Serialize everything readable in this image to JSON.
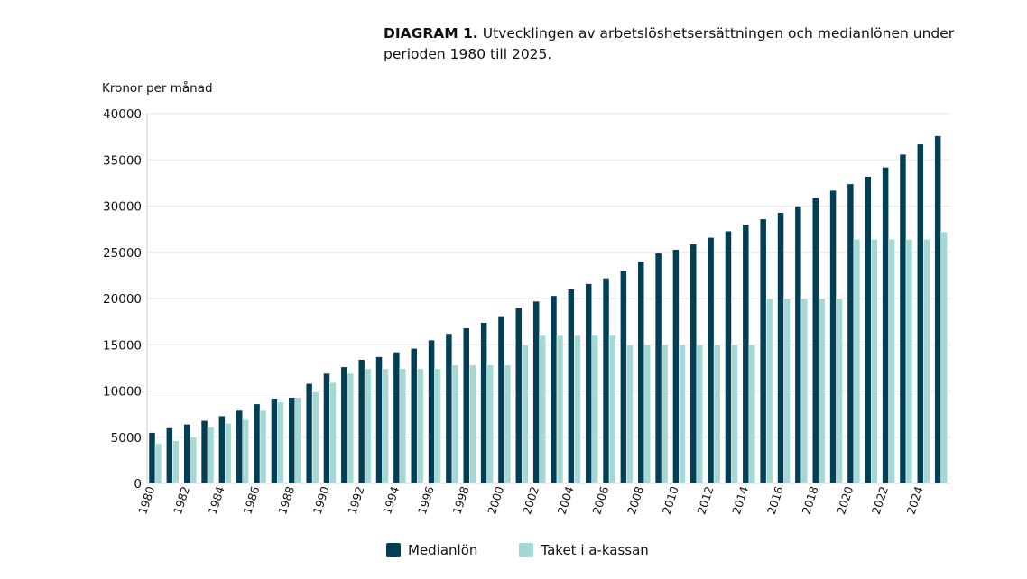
{
  "chart_data": {
    "type": "bar",
    "title_prefix": "DIAGRAM 1.",
    "title": "Utvecklingen av arbetslöshetsersättningen och medianlönen under perioden 1980 till 2025.",
    "ylabel": "Kronor per månad",
    "xlabel": "",
    "ylim": [
      0,
      40000
    ],
    "yticks": [
      0,
      5000,
      10000,
      15000,
      20000,
      25000,
      30000,
      35000,
      40000
    ],
    "grid": true,
    "legend_position": "bottom",
    "categories": [
      1980,
      1981,
      1982,
      1983,
      1984,
      1985,
      1986,
      1987,
      1988,
      1989,
      1990,
      1991,
      1992,
      1993,
      1994,
      1995,
      1996,
      1997,
      1998,
      1999,
      2000,
      2001,
      2002,
      2003,
      2004,
      2005,
      2006,
      2007,
      2008,
      2009,
      2010,
      2011,
      2012,
      2013,
      2014,
      2015,
      2016,
      2017,
      2018,
      2019,
      2020,
      2021,
      2022,
      2023,
      2024,
      2025
    ],
    "xtick_labels": [
      "1980",
      "1982",
      "1984",
      "1986",
      "1988",
      "1990",
      "1992",
      "1994",
      "1996",
      "1998",
      "2000",
      "2002",
      "2004",
      "2006",
      "2008",
      "2010",
      "2012",
      "2014",
      "2016",
      "2018",
      "2020",
      "2022",
      "2024"
    ],
    "series": [
      {
        "name": "Medianlön",
        "color": "#023e54",
        "values": [
          5500,
          6000,
          6400,
          6800,
          7300,
          7900,
          8600,
          9200,
          9300,
          10800,
          11900,
          12600,
          13400,
          13700,
          14200,
          14600,
          15500,
          16200,
          16800,
          17400,
          18100,
          19000,
          19700,
          20300,
          21000,
          21600,
          22200,
          23000,
          24000,
          24900,
          25300,
          25900,
          26600,
          27300,
          28000,
          28600,
          29300,
          30000,
          30900,
          31700,
          32400,
          33200,
          34200,
          35600,
          36700,
          37600
        ]
      },
      {
        "name": "Taket i a-kassan",
        "color": "#a3d8d4",
        "values": [
          4300,
          4600,
          5000,
          6100,
          6500,
          6900,
          7900,
          8800,
          9300,
          9900,
          10900,
          11900,
          12400,
          12400,
          12400,
          12400,
          12400,
          12800,
          12800,
          12800,
          12800,
          15000,
          16000,
          16000,
          16000,
          16000,
          16000,
          15000,
          15000,
          15000,
          15000,
          15000,
          15000,
          15000,
          15000,
          20000,
          20000,
          20000,
          20000,
          20000,
          26400,
          26400,
          26400,
          26400,
          26400,
          27200
        ]
      }
    ]
  }
}
